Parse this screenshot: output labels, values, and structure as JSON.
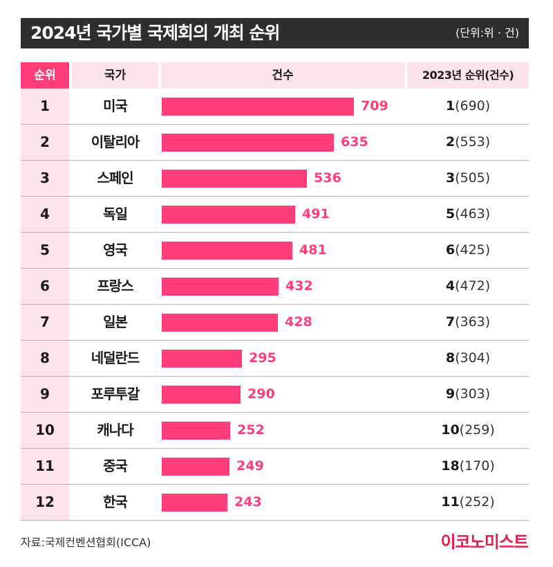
{
  "header": {
    "title": "2024년 국가별 국제회의 개최 순위",
    "unit": "(단위:위 · 건)"
  },
  "columns": {
    "rank": "순위",
    "country": "국가",
    "count": "건수",
    "prev": "2023년 순위(건수)"
  },
  "footer": {
    "source": "자료:국제컨벤션협회(ICCA)",
    "brand": "이코노미스트"
  },
  "colors": {
    "accent": "#ff3e79",
    "header_bg": "#2e2e2e",
    "light_pink": "#fde3ec",
    "brand": "#e8194f"
  },
  "chart_data": {
    "type": "bar",
    "orientation": "horizontal",
    "title": "2024년 국가별 국제회의 개최 순위",
    "xlim": [
      0,
      709
    ],
    "rows": [
      {
        "rank": "1",
        "country": "미국",
        "value": 709,
        "label": "709",
        "prev_rank": "1",
        "prev_count": "(690)"
      },
      {
        "rank": "2",
        "country": "이탈리아",
        "value": 635,
        "label": "635",
        "prev_rank": "2",
        "prev_count": "(553)"
      },
      {
        "rank": "3",
        "country": "스페인",
        "value": 536,
        "label": "536",
        "prev_rank": "3",
        "prev_count": "(505)"
      },
      {
        "rank": "4",
        "country": "독일",
        "value": 491,
        "label": "491",
        "prev_rank": "5",
        "prev_count": "(463)"
      },
      {
        "rank": "5",
        "country": "영국",
        "value": 481,
        "label": "481",
        "prev_rank": "6",
        "prev_count": "(425)"
      },
      {
        "rank": "6",
        "country": "프랑스",
        "value": 432,
        "label": "432",
        "prev_rank": "4",
        "prev_count": "(472)"
      },
      {
        "rank": "7",
        "country": "일본",
        "value": 428,
        "label": "428",
        "prev_rank": "7",
        "prev_count": "(363)"
      },
      {
        "rank": "8",
        "country": "네덜란드",
        "value": 295,
        "label": "295",
        "prev_rank": "8",
        "prev_count": "(304)"
      },
      {
        "rank": "9",
        "country": "포루투갈",
        "value": 290,
        "label": "290",
        "prev_rank": "9",
        "prev_count": "(303)"
      },
      {
        "rank": "10",
        "country": "캐나다",
        "value": 252,
        "label": "252",
        "prev_rank": "10",
        "prev_count": "(259)"
      },
      {
        "rank": "11",
        "country": "중국",
        "value": 249,
        "label": "249",
        "prev_rank": "18",
        "prev_count": "(170)"
      },
      {
        "rank": "12",
        "country": "한국",
        "value": 243,
        "label": "243",
        "prev_rank": "11",
        "prev_count": "(252)"
      }
    ]
  }
}
